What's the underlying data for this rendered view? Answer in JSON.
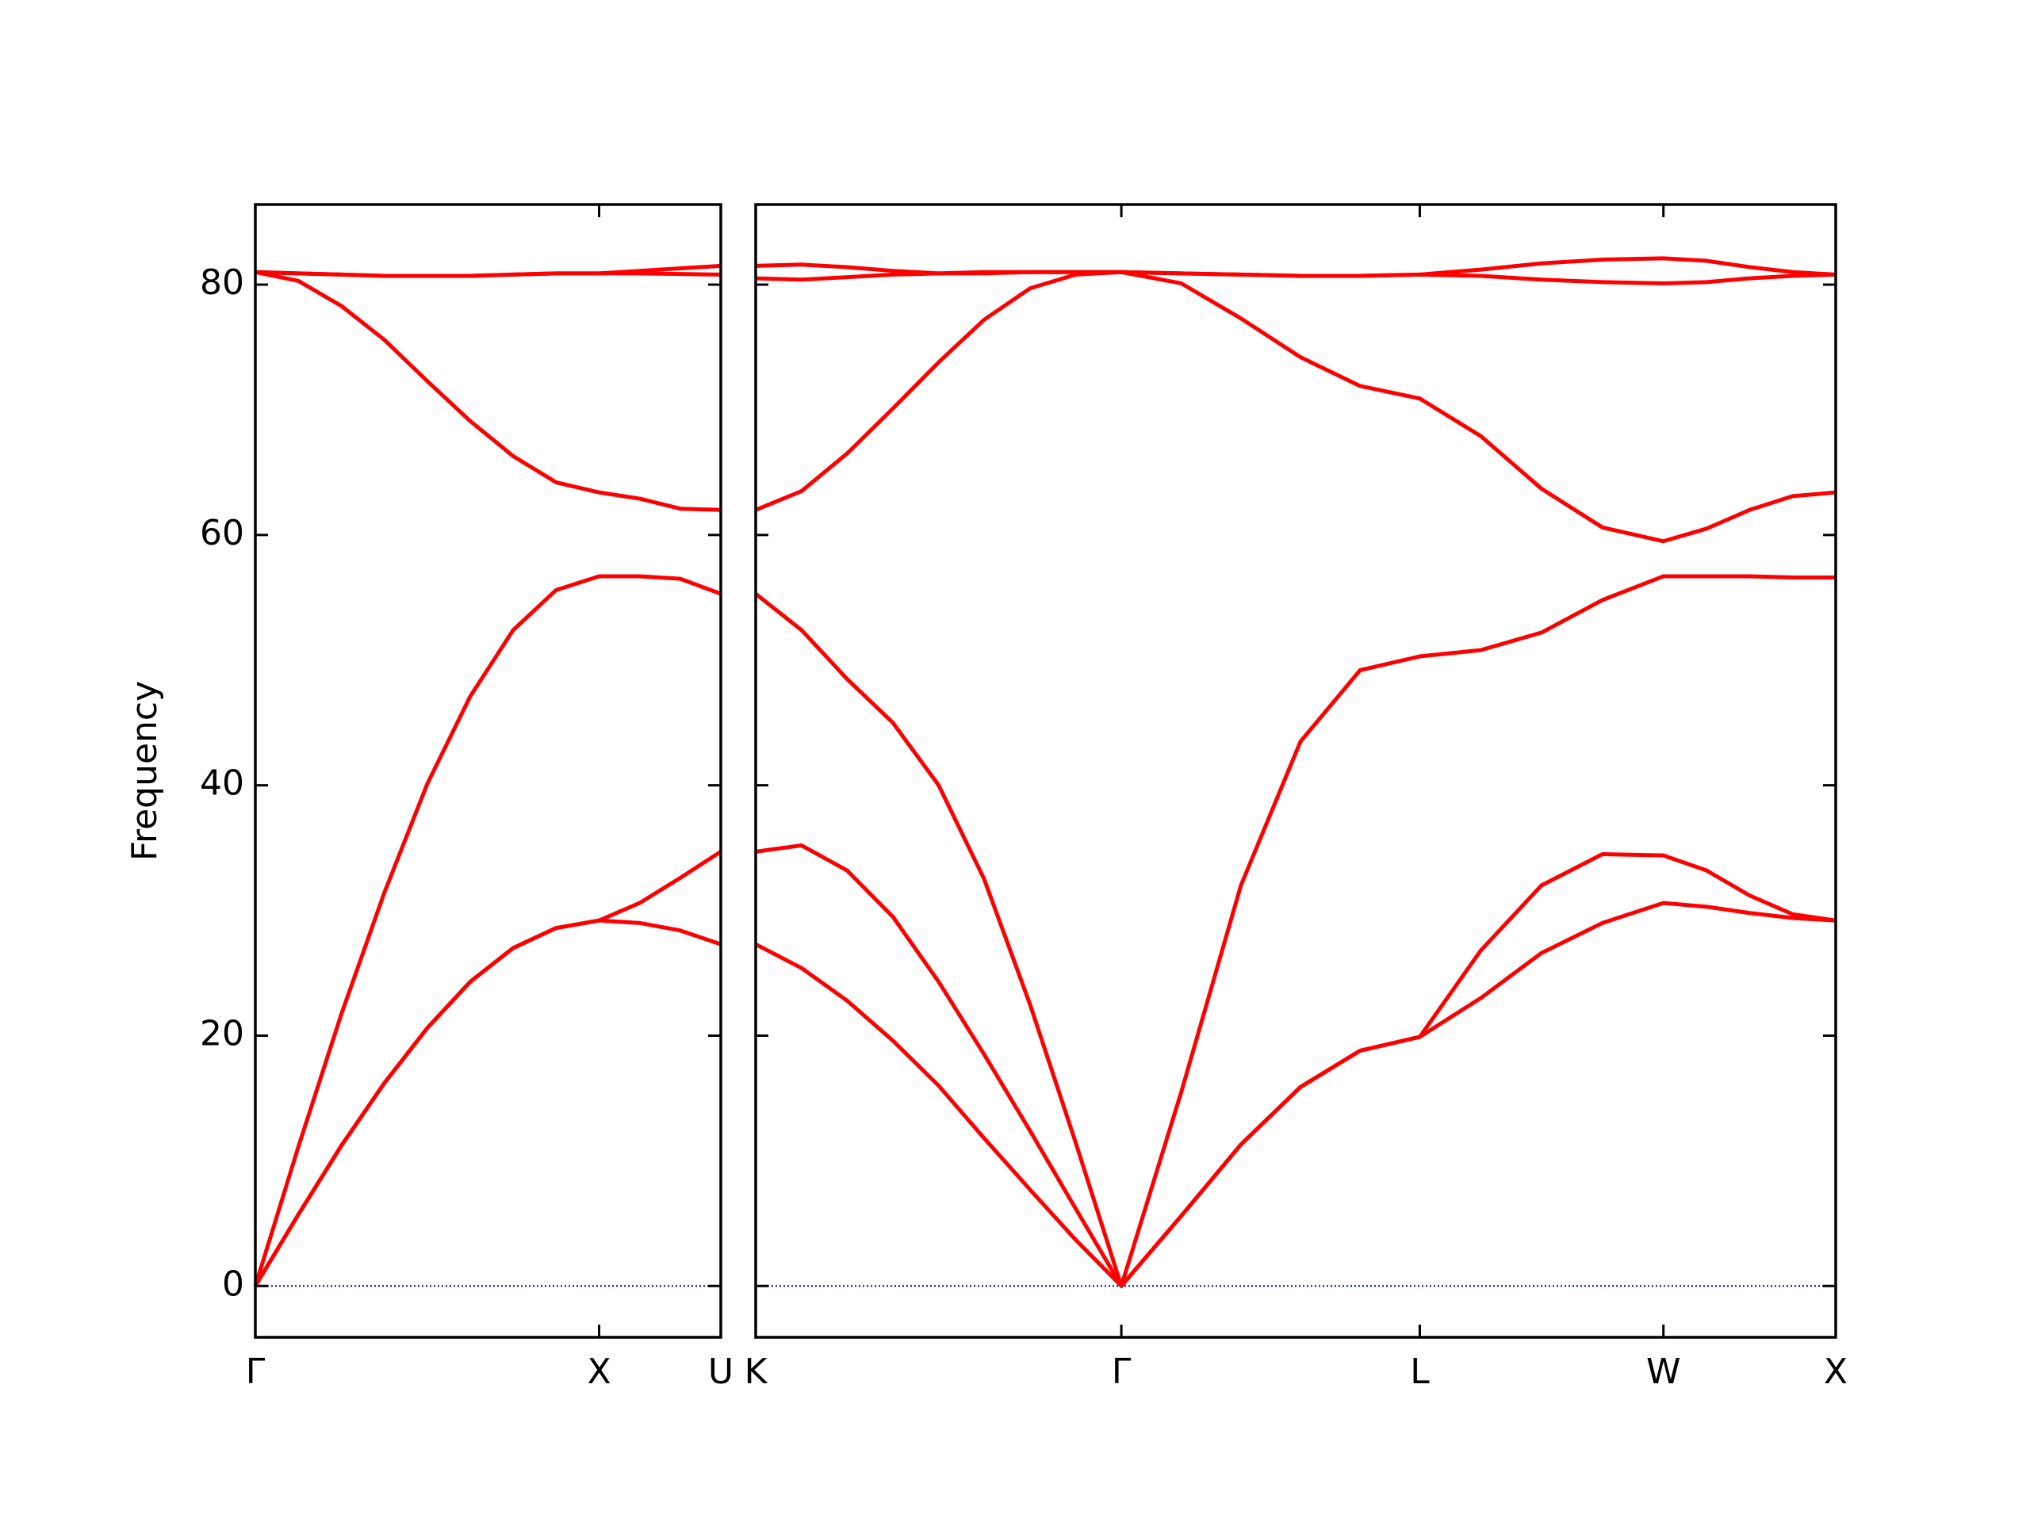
{
  "chart_data": [
    {
      "type": "line",
      "y_label": "Frequency",
      "x": [
        0,
        0.125,
        0.25,
        0.375,
        0.5,
        0.625,
        0.75,
        0.875,
        1.0,
        1.118,
        1.236,
        1.354
      ],
      "series": [
        {
          "color": "#ff0000",
          "values": [
            0,
            5.7,
            11.2,
            16.2,
            20.6,
            24.3,
            27.0,
            28.6,
            29.2,
            29.0,
            28.4,
            27.3
          ]
        },
        {
          "color": "#ff0000",
          "values": [
            0,
            5.7,
            11.2,
            16.2,
            20.6,
            24.3,
            27.0,
            28.6,
            29.2,
            30.6,
            32.6,
            34.7
          ]
        },
        {
          "color": "#ff0000",
          "values": [
            0,
            11.1,
            21.7,
            31.4,
            40.1,
            47.1,
            52.4,
            55.6,
            56.7,
            56.7,
            56.5,
            55.3
          ]
        },
        {
          "color": "#ff0000",
          "values": [
            81.0,
            80.3,
            78.3,
            75.6,
            72.3,
            69.1,
            66.3,
            64.2,
            63.4,
            62.9,
            62.1,
            62.0
          ]
        },
        {
          "color": "#ff0000",
          "values": [
            81.0,
            80.9,
            80.8,
            80.7,
            80.7,
            80.7,
            80.8,
            80.9,
            80.9,
            81.1,
            81.3,
            81.5
          ]
        },
        {
          "color": "#ff0000",
          "values": [
            81.0,
            80.9,
            80.8,
            80.7,
            80.7,
            80.7,
            80.8,
            80.9,
            80.9,
            80.9,
            80.85,
            80.8
          ]
        }
      ],
      "xlim": [
        0,
        1.354
      ],
      "xticks": [
        {
          "value": 0,
          "label": "Γ"
        },
        {
          "value": 1.0,
          "label": "X"
        },
        {
          "value": 1.354,
          "label": "U"
        }
      ],
      "ylim": [
        -4.1,
        86.4
      ],
      "yticks": [
        0,
        20,
        40,
        60,
        80
      ],
      "show_ytick_labels": true,
      "zero_line": {
        "value": 0,
        "color": "#0000cc"
      }
    },
    {
      "type": "line",
      "x": [
        0,
        0.133,
        0.265,
        0.398,
        0.531,
        0.663,
        0.796,
        0.928,
        1.061,
        1.235,
        1.408,
        1.581,
        1.754,
        1.927,
        2.104,
        2.28,
        2.457,
        2.634,
        2.759,
        2.884,
        3.009,
        3.134
      ],
      "series": [
        {
          "color": "#ff0000",
          "values": [
            27.3,
            25.4,
            22.8,
            19.6,
            16.0,
            11.8,
            7.7,
            3.7,
            0,
            5.6,
            11.3,
            15.9,
            18.8,
            19.9,
            23.0,
            26.6,
            29.0,
            30.6,
            30.3,
            29.8,
            29.4,
            29.2
          ]
        },
        {
          "color": "#ff0000",
          "values": [
            34.7,
            35.2,
            33.2,
            29.5,
            24.3,
            18.5,
            12.4,
            6.2,
            0,
            5.6,
            11.3,
            15.9,
            18.8,
            19.9,
            26.8,
            32.0,
            34.5,
            34.4,
            33.2,
            31.2,
            29.7,
            29.2
          ]
        },
        {
          "color": "#ff0000",
          "values": [
            55.3,
            52.4,
            48.5,
            45.0,
            40.0,
            32.5,
            22.5,
            11.5,
            0,
            15.5,
            32.0,
            43.5,
            49.2,
            50.3,
            50.8,
            52.2,
            54.8,
            56.7,
            56.7,
            56.7,
            56.6,
            56.6
          ]
        },
        {
          "color": "#ff0000",
          "values": [
            62.0,
            63.5,
            66.5,
            70.1,
            73.8,
            77.2,
            79.7,
            80.8,
            81.0,
            80.1,
            77.3,
            74.2,
            71.9,
            70.9,
            67.9,
            63.7,
            60.6,
            59.5,
            60.5,
            62.0,
            63.1,
            63.4
          ]
        },
        {
          "color": "#ff0000",
          "values": [
            80.5,
            80.4,
            80.6,
            80.8,
            80.9,
            81.0,
            81.0,
            81.0,
            81.0,
            80.9,
            80.8,
            80.7,
            80.7,
            80.8,
            80.7,
            80.4,
            80.2,
            80.1,
            80.2,
            80.5,
            80.7,
            80.8
          ]
        },
        {
          "color": "#ff0000",
          "values": [
            81.5,
            81.6,
            81.4,
            81.1,
            80.9,
            80.9,
            81.0,
            81.0,
            81.0,
            80.9,
            80.8,
            80.7,
            80.7,
            80.8,
            81.2,
            81.7,
            82.0,
            82.1,
            81.9,
            81.4,
            81.0,
            80.8
          ]
        }
      ],
      "xlim": [
        0,
        3.134
      ],
      "xticks": [
        {
          "value": 0,
          "label": "K"
        },
        {
          "value": 1.061,
          "label": "Γ"
        },
        {
          "value": 1.927,
          "label": "L"
        },
        {
          "value": 2.634,
          "label": "W"
        },
        {
          "value": 3.134,
          "label": "X"
        }
      ],
      "ylim": [
        -4.1,
        86.4
      ],
      "yticks": [
        0,
        20,
        40,
        60,
        80
      ],
      "show_ytick_labels": false,
      "zero_line": {
        "value": 0,
        "color": "#0000cc"
      }
    }
  ]
}
